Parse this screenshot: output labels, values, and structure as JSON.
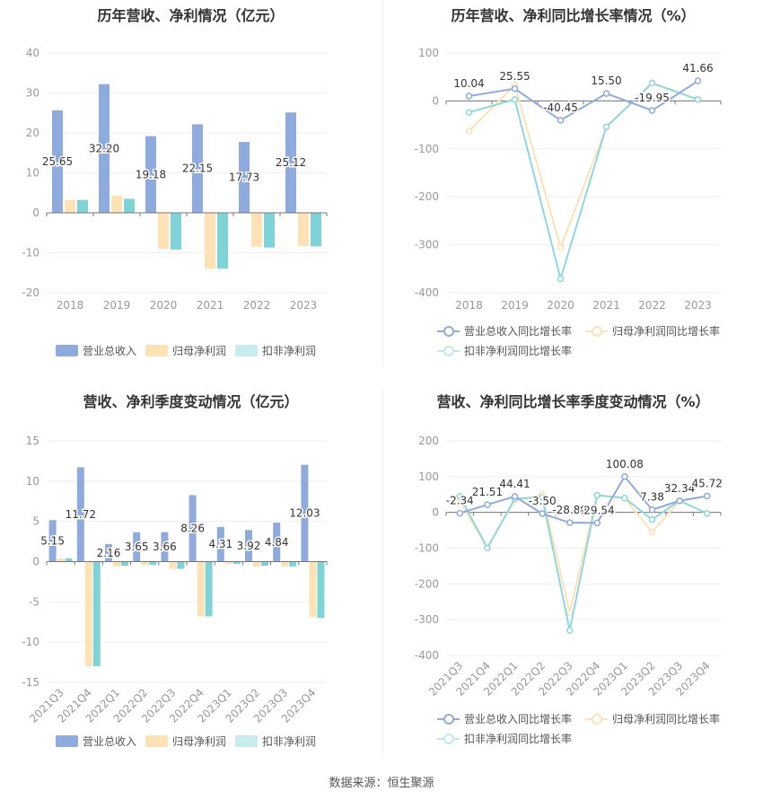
{
  "source": "数据来源：恒生聚源",
  "colors": {
    "revenue": "#8faadc",
    "net_profit": "#fde2b6",
    "deducted": "#7fd3d6"
  },
  "charts": [
    {
      "title": "历年营收、净利情况（亿元）",
      "chart_data": {
        "type": "bar",
        "categories": [
          "2018",
          "2019",
          "2020",
          "2021",
          "2022",
          "2023"
        ],
        "series": [
          {
            "name": "营业总收入",
            "values": [
              25.65,
              32.2,
              19.18,
              22.15,
              17.73,
              25.12
            ],
            "labels": [
              "25.65",
              "32.20",
              "19.18",
              "22.15",
              "17.73",
              "25.12"
            ]
          },
          {
            "name": "归母净利润",
            "values": [
              3.2,
              4.3,
              -9.0,
              -14.0,
              -8.5,
              -8.3
            ]
          },
          {
            "name": "扣非净利润",
            "values": [
              3.2,
              3.5,
              -9.2,
              -14.0,
              -8.7,
              -8.4
            ]
          }
        ],
        "yticks": [
          "40",
          "30",
          "20",
          "10",
          "0",
          "-10",
          "-20"
        ],
        "ylim": [
          -20,
          40
        ]
      }
    },
    {
      "title": "历年营收、净利同比增长率情况（%）",
      "chart_data": {
        "type": "line",
        "categories": [
          "2018",
          "2019",
          "2020",
          "2021",
          "2022",
          "2023"
        ],
        "series": [
          {
            "name": "营业总收入同比增长率",
            "values": [
              10.04,
              25.55,
              -40.45,
              15.5,
              -19.95,
              41.66
            ],
            "labels": [
              "10.04",
              "25.55",
              "-40.45",
              "15.50",
              "-19.95",
              "41.66"
            ]
          },
          {
            "name": "归母净利润同比增长率",
            "values": [
              -63,
              33,
              -306,
              -55,
              38,
              3
            ]
          },
          {
            "name": "扣非净利润同比增长率",
            "values": [
              -24,
              3,
              -371,
              -54,
              37,
              3
            ]
          }
        ],
        "yticks": [
          "100",
          "0",
          "-100",
          "-200",
          "-300",
          "-400"
        ],
        "ylim": [
          -400,
          100
        ]
      }
    },
    {
      "title": "营收、净利季度变动情况（亿元）",
      "chart_data": {
        "type": "bar",
        "categories": [
          "2021Q3",
          "2021Q4",
          "2022Q1",
          "2022Q2",
          "2022Q3",
          "2022Q4",
          "2023Q1",
          "2023Q2",
          "2023Q3",
          "2023Q4"
        ],
        "series": [
          {
            "name": "营业总收入",
            "values": [
              5.15,
              11.72,
              2.16,
              3.65,
              3.66,
              8.26,
              4.31,
              3.92,
              4.84,
              12.03
            ],
            "labels": [
              "5.15",
              "11.72",
              "2.16",
              "3.65",
              "3.66",
              "8.26",
              "4.31",
              "3.92",
              "4.84",
              "12.03"
            ]
          },
          {
            "name": "归母净利润",
            "values": [
              0.4,
              -13.0,
              -0.6,
              -0.4,
              -0.9,
              -6.8,
              -0.3,
              -0.6,
              -0.6,
              -6.9
            ]
          },
          {
            "name": "扣非净利润",
            "values": [
              0.4,
              -13.0,
              -0.5,
              -0.4,
              -0.9,
              -6.8,
              -0.3,
              -0.5,
              -0.6,
              -7.0
            ]
          }
        ],
        "yticks": [
          "15",
          "10",
          "5",
          "0",
          "-5",
          "-10",
          "-15"
        ],
        "ylim": [
          -15,
          15
        ]
      }
    },
    {
      "title": "营收、净利同比增长率季度变动情况（%）",
      "chart_data": {
        "type": "line",
        "categories": [
          "2021Q3",
          "2021Q4",
          "2022Q1",
          "2022Q2",
          "2022Q3",
          "2022Q4",
          "2023Q1",
          "2023Q2",
          "2023Q3",
          "2023Q4"
        ],
        "series": [
          {
            "name": "营业总收入同比增长率",
            "values": [
              -2.34,
              21.51,
              44.41,
              -3.5,
              -28.89,
              -29.54,
              100.08,
              7.38,
              32.34,
              45.72
            ],
            "labels": [
              "-2.34",
              "21.51",
              "44.41",
              "-3.50",
              "-28.89",
              "-29.54",
              "100.08",
              "7.38",
              "32.34",
              "45.72"
            ]
          },
          {
            "name": "归母净利润同比增长率",
            "values": [
              30,
              -98,
              35,
              50,
              -280,
              48,
              40,
              -55,
              32,
              -3
            ]
          },
          {
            "name": "扣非净利润同比增长率",
            "values": [
              45,
              -100,
              38,
              42,
              -330,
              48,
              40,
              -20,
              33,
              -3
            ]
          }
        ],
        "yticks": [
          "200",
          "100",
          "0",
          "-100",
          "-200",
          "-300",
          "-400"
        ],
        "ylim": [
          -400,
          200
        ]
      }
    }
  ]
}
